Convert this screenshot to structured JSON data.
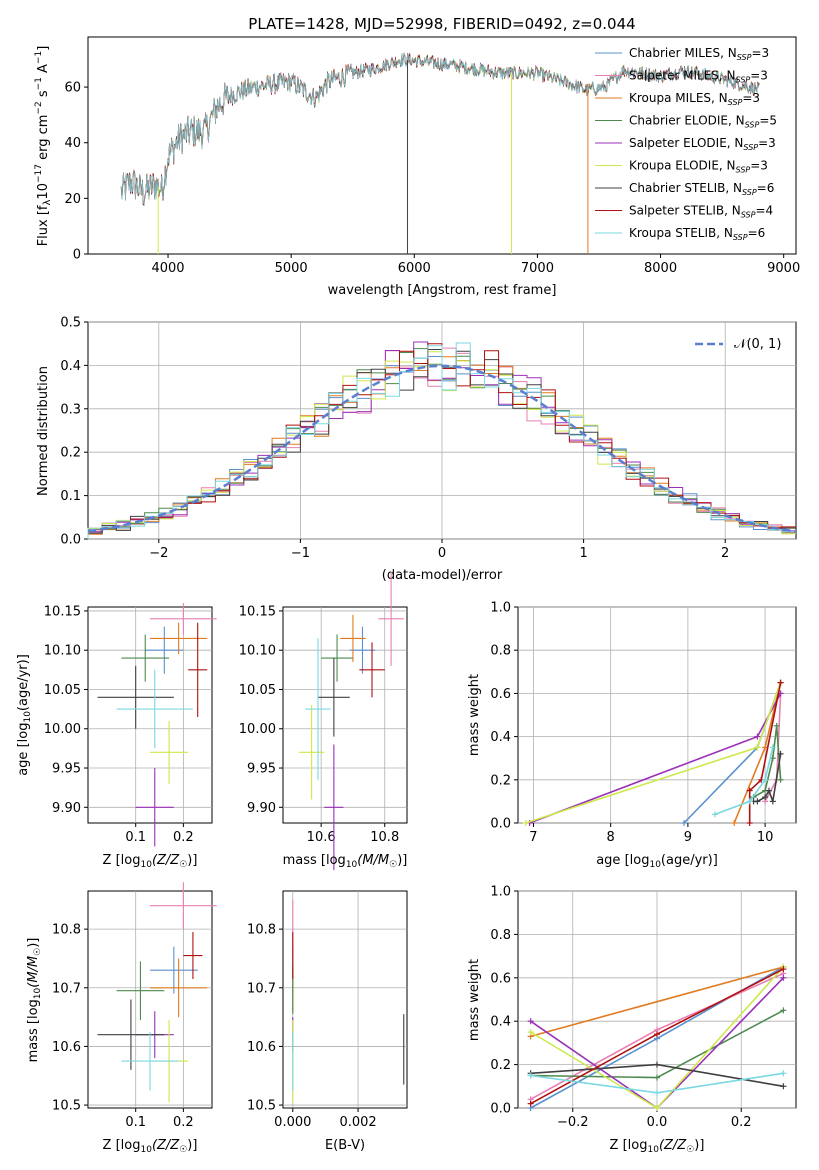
{
  "figure": {
    "title": "PLATE=1428, MJD=52998, FIBERID=0492, z=0.044"
  },
  "models": [
    {
      "label": "Chabrier MILES, N",
      "sub": "SSP",
      "suffix": "=3",
      "color": "#5a90cf"
    },
    {
      "label": "Salpeter MILES, N",
      "sub": "SSP",
      "suffix": "=3",
      "color": "#e87fb3"
    },
    {
      "label": "Kroupa MILES, N",
      "sub": "SSP",
      "suffix": "=3",
      "color": "#e07b20"
    },
    {
      "label": "Chabrier ELODIE, N",
      "sub": "SSP",
      "suffix": "=5",
      "color": "#4e8a4e"
    },
    {
      "label": "Salpeter ELODIE, N",
      "sub": "SSP",
      "suffix": "=3",
      "color": "#9b30b8"
    },
    {
      "label": "Kroupa ELODIE, N",
      "sub": "SSP",
      "suffix": "=3",
      "color": "#cde84a"
    },
    {
      "label": "Chabrier STELIB, N",
      "sub": "SSP",
      "suffix": "=6",
      "color": "#404040"
    },
    {
      "label": "Salpeter STELIB, N",
      "sub": "SSP",
      "suffix": "=4",
      "color": "#b01010"
    },
    {
      "label": "Kroupa STELIB, N",
      "sub": "SSP",
      "suffix": "=6",
      "color": "#7ad8e2"
    }
  ],
  "chart_data": [
    {
      "id": "spectrum",
      "type": "line",
      "xlabel": "wavelength [Angstrom, rest frame]",
      "ylabel": "Flux [f",
      "ylabel_parts": {
        "lambda": "λ",
        "mid": "10",
        "e1": "−17",
        "units": " erg cm",
        "e2": "−2",
        "s": " s",
        "e3": "−1",
        "a": " A",
        "e4": "−1",
        "close": "]"
      },
      "xlim": [
        3350,
        9100
      ],
      "ylim": [
        0,
        78
      ],
      "xticks": [
        4000,
        5000,
        6000,
        7000,
        8000,
        9000
      ],
      "yticks": [
        0,
        20,
        40,
        60
      ],
      "continuum": [
        [
          3620,
          22
        ],
        [
          3700,
          26
        ],
        [
          3800,
          22
        ],
        [
          3900,
          25
        ],
        [
          3950,
          23
        ],
        [
          4000,
          35
        ],
        [
          4100,
          42
        ],
        [
          4200,
          44
        ],
        [
          4300,
          44
        ],
        [
          4400,
          53
        ],
        [
          4500,
          57
        ],
        [
          4700,
          60
        ],
        [
          5000,
          62
        ],
        [
          5200,
          56
        ],
        [
          5300,
          62
        ],
        [
          5500,
          65
        ],
        [
          5700,
          67
        ],
        [
          5900,
          70
        ],
        [
          6100,
          69
        ],
        [
          6300,
          68
        ],
        [
          6562,
          66
        ],
        [
          6700,
          65
        ],
        [
          7000,
          65
        ],
        [
          7200,
          62
        ],
        [
          7400,
          59
        ],
        [
          7550,
          60
        ],
        [
          7700,
          66
        ],
        [
          8000,
          64
        ],
        [
          8200,
          66
        ],
        [
          8500,
          63
        ],
        [
          8800,
          59
        ]
      ],
      "spikes": [
        {
          "x": 3920,
          "color_index": 5
        },
        {
          "x": 5945,
          "color_index": 6
        },
        {
          "x": 6790,
          "color_index": 5
        },
        {
          "x": 7410,
          "color_index": 2
        }
      ]
    },
    {
      "id": "residual-histogram",
      "type": "bar",
      "xlabel": "(data-model)/error",
      "ylabel": "Normed distribution",
      "legend": "𝒩(0, 1)",
      "legend_position": "top-right",
      "xlim": [
        -2.5,
        2.5
      ],
      "ylim": [
        0,
        0.5
      ],
      "xticks": [
        -2,
        -1,
        0,
        1,
        2
      ],
      "yticks": [
        0,
        0.1,
        0.2,
        0.3,
        0.4,
        0.5
      ],
      "bin_width": 0.1,
      "grid": true
    },
    {
      "id": "age-vs-Z",
      "type": "scatter",
      "xlabel": "Z [log",
      "xlabel_sub": "10",
      "xlabel_rest": "(Z/Z",
      "ylabel": "age  [log",
      "ylabel_sub": "10",
      "ylabel_rest": "(age/yr)]",
      "xlim": [
        0.0,
        0.26
      ],
      "ylim": [
        9.88,
        10.155
      ],
      "xticks": [
        0.1,
        0.2
      ],
      "yticks": [
        9.9,
        9.95,
        10.0,
        10.05,
        10.1,
        10.15
      ],
      "points": [
        {
          "x": 0.16,
          "xerr": 0.04,
          "y": 10.1,
          "yerr": 0.03
        },
        {
          "x": 0.2,
          "xerr": 0.07,
          "y": 10.14,
          "yerr": 0.02
        },
        {
          "x": 0.19,
          "xerr": 0.06,
          "y": 10.115,
          "yerr": 0.02
        },
        {
          "x": 0.12,
          "xerr": 0.05,
          "y": 10.09,
          "yerr": 0.03
        },
        {
          "x": 0.14,
          "xerr": 0.04,
          "y": 9.9,
          "yerr": 0.05
        },
        {
          "x": 0.17,
          "xerr": 0.04,
          "y": 9.97,
          "yerr": 0.04
        },
        {
          "x": 0.1,
          "xerr": 0.08,
          "y": 10.04,
          "yerr": 0.04
        },
        {
          "x": 0.23,
          "xerr": 0.02,
          "y": 10.075,
          "yerr": 0.06
        },
        {
          "x": 0.14,
          "xerr": 0.08,
          "y": 10.025,
          "yerr": 0.05
        }
      ]
    },
    {
      "id": "age-vs-mass",
      "type": "scatter",
      "xlabel": "mass [log",
      "xlabel_sub": "10",
      "xlabel_rest": "(M/M",
      "xlim": [
        10.48,
        10.87
      ],
      "ylim": [
        9.88,
        10.155
      ],
      "xticks": [
        10.6,
        10.8
      ],
      "yticks": [
        9.9,
        9.95,
        10.0,
        10.05,
        10.1,
        10.15
      ],
      "points": [
        {
          "x": 10.73,
          "xerr": 0.04,
          "y": 10.1,
          "yerr": 0.03
        },
        {
          "x": 10.82,
          "xerr": 0.04,
          "y": 10.14,
          "yerr": 0.06
        },
        {
          "x": 10.7,
          "xerr": 0.04,
          "y": 10.115,
          "yerr": 0.03
        },
        {
          "x": 10.65,
          "xerr": 0.05,
          "y": 10.09,
          "yerr": 0.03
        },
        {
          "x": 10.64,
          "xerr": 0.03,
          "y": 9.9,
          "yerr": 0.08
        },
        {
          "x": 10.57,
          "xerr": 0.04,
          "y": 9.97,
          "yerr": 0.06
        },
        {
          "x": 10.64,
          "xerr": 0.05,
          "y": 10.04,
          "yerr": 0.05
        },
        {
          "x": 10.76,
          "xerr": 0.04,
          "y": 10.075,
          "yerr": 0.035
        },
        {
          "x": 10.59,
          "xerr": 0.04,
          "y": 10.025,
          "yerr": 0.09
        }
      ]
    },
    {
      "id": "massweight-vs-age",
      "type": "line",
      "xlabel": "age  [log",
      "xlabel_sub": "10",
      "xlabel_rest": "(age/yr)]",
      "ylabel": "mass weight",
      "xlim": [
        6.8,
        10.4
      ],
      "ylim": [
        0,
        1.0
      ],
      "xticks": [
        7,
        8,
        9,
        10
      ],
      "yticks": [
        0.0,
        0.2,
        0.4,
        0.6,
        0.8,
        1.0
      ],
      "series": [
        {
          "x": [
            8.95,
            9.9,
            10.2
          ],
          "y": [
            0.0,
            0.35,
            0.65
          ]
        },
        {
          "x": [
            10.0,
            10.15,
            10.2
          ],
          "y": [
            0.1,
            0.2,
            0.6
          ]
        },
        {
          "x": [
            9.6,
            10.0,
            10.2
          ],
          "y": [
            0.0,
            0.35,
            0.65
          ]
        },
        {
          "x": [
            9.85,
            10.0,
            10.1,
            10.15,
            10.2
          ],
          "y": [
            0.12,
            0.15,
            0.3,
            0.45,
            0.2
          ]
        },
        {
          "x": [
            6.95,
            9.9,
            10.2
          ],
          "y": [
            0.0,
            0.4,
            0.6
          ]
        },
        {
          "x": [
            6.9,
            9.9,
            10.2
          ],
          "y": [
            0.0,
            0.35,
            0.65
          ]
        },
        {
          "x": [
            9.85,
            9.9,
            10.0,
            10.05,
            10.1,
            10.2
          ],
          "y": [
            0.1,
            0.1,
            0.12,
            0.15,
            0.1,
            0.32
          ]
        },
        {
          "x": [
            9.8,
            9.8,
            9.95,
            10.2
          ],
          "y": [
            0.0,
            0.15,
            0.2,
            0.65
          ]
        },
        {
          "x": [
            9.35,
            9.8,
            10.0,
            10.1
          ],
          "y": [
            0.04,
            0.1,
            0.2,
            0.35
          ]
        }
      ]
    },
    {
      "id": "mass-vs-Z",
      "type": "scatter",
      "xlabel": "Z [log",
      "xlabel_sub": "10",
      "xlabel_rest": "(Z/Z",
      "ylabel": "mass [log",
      "ylabel_sub": "10",
      "ylabel_rest": "(M/M",
      "xlim": [
        0.0,
        0.26
      ],
      "ylim": [
        10.495,
        10.865
      ],
      "xticks": [
        0.1,
        0.2
      ],
      "yticks": [
        10.5,
        10.6,
        10.7,
        10.8
      ],
      "points": [
        {
          "x": 0.18,
          "xerr": 0.05,
          "y": 10.73,
          "yerr": 0.04
        },
        {
          "x": 0.2,
          "xerr": 0.07,
          "y": 10.84,
          "yerr": 0.04
        },
        {
          "x": 0.19,
          "xerr": 0.06,
          "y": 10.7,
          "yerr": 0.05
        },
        {
          "x": 0.11,
          "xerr": 0.05,
          "y": 10.695,
          "yerr": 0.05
        },
        {
          "x": 0.14,
          "xerr": 0.04,
          "y": 10.62,
          "yerr": 0.04
        },
        {
          "x": 0.17,
          "xerr": 0.04,
          "y": 10.575,
          "yerr": 0.07
        },
        {
          "x": 0.09,
          "xerr": 0.07,
          "y": 10.62,
          "yerr": 0.06
        },
        {
          "x": 0.22,
          "xerr": 0.02,
          "y": 10.755,
          "yerr": 0.04
        },
        {
          "x": 0.13,
          "xerr": 0.06,
          "y": 10.575,
          "yerr": 0.05
        }
      ]
    },
    {
      "id": "mass-vs-EBV",
      "type": "scatter",
      "xlabel": "E(B-V)",
      "xlim": [
        -0.0003,
        0.0035
      ],
      "ylim": [
        10.495,
        10.865
      ],
      "xticks": [
        0.0,
        0.002
      ],
      "yticks": [
        10.5,
        10.6,
        10.7,
        10.8
      ],
      "points": [
        {
          "x": 0.0,
          "xerr": 0,
          "y": 10.73,
          "yerr": 0.04
        },
        {
          "x": 0.0,
          "xerr": 0,
          "y": 10.8,
          "yerr": 0.05
        },
        {
          "x": 0.0,
          "xerr": 0,
          "y": 10.7,
          "yerr": 0.04
        },
        {
          "x": 0.0,
          "xerr": 0,
          "y": 10.695,
          "yerr": 0.04
        },
        {
          "x": 0.0,
          "xerr": 0,
          "y": 10.62,
          "yerr": 0.03
        },
        {
          "x": 0.0,
          "xerr": 0,
          "y": 10.575,
          "yerr": 0.07
        },
        {
          "x": 0.0034,
          "xerr": 0,
          "y": 10.595,
          "yerr": 0.06
        },
        {
          "x": 0.0,
          "xerr": 0,
          "y": 10.755,
          "yerr": 0.04
        },
        {
          "x": 0.0,
          "xerr": 0,
          "y": 10.575,
          "yerr": 0.05
        }
      ]
    },
    {
      "id": "massweight-vs-Z",
      "type": "line",
      "xlabel": "Z [log",
      "xlabel_sub": "10",
      "xlabel_rest": "(Z/Z",
      "ylabel": "mass weight",
      "xlim": [
        -0.33,
        0.33
      ],
      "ylim": [
        0,
        1.0
      ],
      "xticks": [
        -0.2,
        0.0,
        0.2
      ],
      "yticks": [
        0.0,
        0.2,
        0.4,
        0.6,
        0.8,
        1.0
      ],
      "series": [
        {
          "x": [
            -0.3,
            0.0,
            0.3
          ],
          "y": [
            0.0,
            0.32,
            0.65
          ]
        },
        {
          "x": [
            -0.3,
            0.0,
            0.3
          ],
          "y": [
            0.04,
            0.36,
            0.62
          ]
        },
        {
          "x": [
            -0.3,
            0.3
          ],
          "y": [
            0.33,
            0.65
          ]
        },
        {
          "x": [
            -0.3,
            0.0,
            0.3
          ],
          "y": [
            0.15,
            0.14,
            0.45
          ]
        },
        {
          "x": [
            -0.3,
            0.0,
            0.3
          ],
          "y": [
            0.4,
            0.0,
            0.6
          ]
        },
        {
          "x": [
            -0.3,
            0.0,
            0.3
          ],
          "y": [
            0.35,
            0.0,
            0.65
          ]
        },
        {
          "x": [
            -0.3,
            0.0,
            0.3
          ],
          "y": [
            0.16,
            0.2,
            0.1
          ]
        },
        {
          "x": [
            -0.3,
            0.0,
            0.3
          ],
          "y": [
            0.02,
            0.34,
            0.64
          ]
        },
        {
          "x": [
            -0.3,
            0.0,
            0.3
          ],
          "y": [
            0.15,
            0.07,
            0.16
          ]
        }
      ]
    }
  ]
}
